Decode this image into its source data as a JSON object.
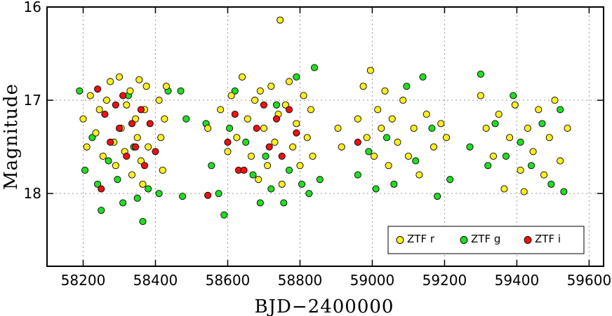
{
  "chart_data": {
    "type": "scatter",
    "x_label": "BJD−2400000",
    "y_label": "Magnitude",
    "xlim": [
      58100,
      59640
    ],
    "ylim": [
      18.78,
      16
    ],
    "xticks": [
      58200,
      58400,
      58600,
      58800,
      59000,
      59200,
      59400,
      59600
    ],
    "yticks": [
      16,
      17,
      18
    ],
    "grid": true,
    "legend": "lower right",
    "series": [
      {
        "name": "ZTF g",
        "color": "#22dd22",
        "x": [
          58190,
          58205,
          58225,
          58240,
          58250,
          58270,
          58295,
          58310,
          58325,
          58340,
          58350,
          58365,
          58380,
          58410,
          58435,
          58470,
          58475,
          58485,
          58540,
          58555,
          58575,
          58590,
          58605,
          58620,
          58650,
          58670,
          58690,
          58705,
          58720,
          58735,
          58755,
          58770,
          58790,
          58805,
          58825,
          58840,
          58855,
          58960,
          58990,
          59010,
          59040,
          59060,
          59095,
          59120,
          59140,
          59165,
          59180,
          59215,
          59270,
          59300,
          59320,
          59340,
          59370,
          59390,
          59410,
          59440,
          59470,
          59495,
          59520,
          59530
        ],
        "values": [
          16.9,
          17.75,
          17.4,
          17.9,
          18.18,
          17.65,
          17.85,
          18.1,
          16.95,
          17.5,
          18.05,
          18.3,
          17.95,
          18.0,
          16.9,
          16.9,
          18.03,
          17.2,
          17.25,
          17.7,
          18.0,
          18.23,
          17.3,
          16.9,
          17.45,
          17.8,
          18.1,
          17.6,
          17.95,
          17.05,
          18.1,
          17.75,
          16.75,
          17.9,
          18.0,
          16.65,
          17.85,
          17.8,
          17.55,
          17.95,
          17.4,
          17.9,
          16.85,
          17.65,
          16.75,
          17.3,
          18.03,
          17.85,
          17.5,
          16.72,
          17.7,
          17.25,
          17.6,
          16.95,
          17.45,
          17.7,
          17.25,
          17.9,
          17.1,
          17.98
        ]
      },
      {
        "name": "ZTF r",
        "color": "#ffee22",
        "x": [
          58200,
          58210,
          58220,
          58235,
          58245,
          58255,
          58265,
          58275,
          58285,
          58290,
          58300,
          58305,
          58315,
          58320,
          58330,
          58335,
          58345,
          58350,
          58355,
          58360,
          58365,
          58370,
          58375,
          58380,
          58410,
          58415,
          58420,
          58425,
          58430,
          58545,
          58580,
          58600,
          58610,
          58625,
          58640,
          58655,
          58665,
          58675,
          58685,
          58690,
          58700,
          58710,
          58720,
          58730,
          58740,
          58745,
          58750,
          58760,
          58770,
          58780,
          58790,
          58800,
          58810,
          58820,
          58830,
          58835,
          58905,
          58915,
          58960,
          58975,
          58985,
          58995,
          59005,
          59015,
          59025,
          59035,
          59045,
          59055,
          59070,
          59085,
          59100,
          59115,
          59130,
          59150,
          59170,
          59190,
          59205,
          59300,
          59315,
          59335,
          59350,
          59365,
          59380,
          59395,
          59410,
          59420,
          59430,
          59445,
          59460,
          59475,
          59490,
          59505,
          59520,
          59540
        ],
        "values": [
          17.2,
          17.5,
          16.95,
          17.35,
          17.1,
          17.6,
          17.0,
          16.8,
          17.45,
          17.7,
          16.75,
          17.3,
          17.55,
          17.05,
          16.9,
          17.8,
          17.2,
          17.4,
          16.78,
          17.65,
          17.9,
          17.1,
          16.85,
          17.5,
          17.0,
          17.4,
          17.75,
          17.2,
          16.85,
          17.3,
          17.1,
          17.55,
          16.95,
          17.4,
          16.75,
          17.2,
          17.6,
          17.0,
          17.85,
          16.9,
          17.3,
          17.7,
          16.85,
          17.45,
          17.15,
          16.14,
          17.9,
          17.05,
          16.8,
          17.5,
          17.25,
          17.7,
          16.95,
          17.4,
          17.1,
          17.6,
          17.3,
          17.5,
          17.2,
          16.85,
          17.4,
          16.68,
          17.6,
          17.1,
          17.3,
          16.9,
          17.7,
          17.2,
          17.45,
          17.0,
          17.6,
          17.3,
          17.8,
          17.15,
          17.5,
          17.25,
          17.4,
          16.95,
          17.3,
          17.6,
          17.15,
          17.95,
          17.4,
          17.05,
          17.75,
          17.98,
          17.3,
          17.55,
          17.1,
          17.8,
          17.4,
          17.0,
          17.65,
          17.3
        ]
      },
      {
        "name": "ZTF i",
        "color": "#ee1111",
        "x": [
          58240,
          58250,
          58260,
          58275,
          58290,
          58300,
          58310,
          58320,
          58335,
          58345,
          58360,
          58370,
          58385,
          58400,
          58545,
          58600,
          58620,
          58630,
          58645,
          58680,
          58700,
          58715,
          58735,
          58750,
          58770,
          58790,
          58960
        ],
        "values": [
          16.88,
          17.95,
          17.15,
          17.45,
          17.05,
          17.3,
          16.95,
          17.6,
          17.25,
          17.5,
          17.1,
          17.7,
          17.25,
          17.55,
          18.02,
          17.45,
          17.15,
          17.75,
          17.75,
          17.3,
          17.05,
          17.5,
          17.2,
          17.6,
          17.1,
          17.35,
          17.45
        ]
      }
    ],
    "legend_order": [
      "ZTF r",
      "ZTF g",
      "ZTF i"
    ]
  }
}
